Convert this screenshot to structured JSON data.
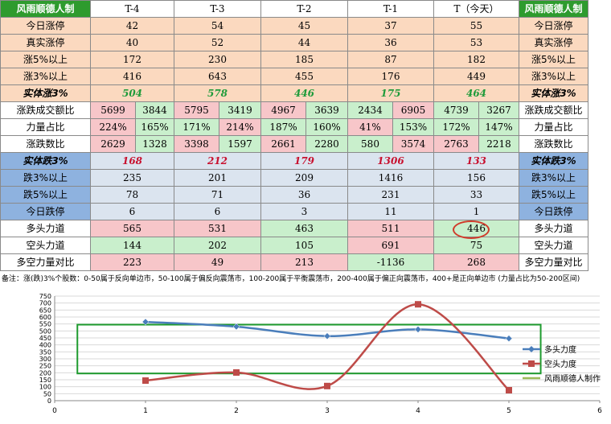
{
  "table": {
    "left_header": "风雨顺德人制",
    "right_header": "风雨顺德人制",
    "columns": [
      "T-4",
      "T-3",
      "T-2",
      "T-1",
      "T（今天）"
    ],
    "rows_top": [
      {
        "label": "今日涨停",
        "values": [
          "42",
          "54",
          "45",
          "37",
          "55"
        ]
      },
      {
        "label": "真实涨停",
        "values": [
          "40",
          "52",
          "44",
          "36",
          "53"
        ]
      },
      {
        "label": "涨5%以上",
        "values": [
          "172",
          "230",
          "185",
          "87",
          "182"
        ]
      },
      {
        "label": "涨3%以上",
        "values": [
          "416",
          "643",
          "455",
          "176",
          "449"
        ]
      }
    ],
    "shiti_zhang": {
      "label": "实体涨3%",
      "values": [
        "504",
        "578",
        "446",
        "175",
        "464"
      ]
    },
    "volume_row": {
      "label": "涨跌成交额比",
      "pairs": [
        [
          "5699",
          "3844"
        ],
        [
          "5795",
          "3419"
        ],
        [
          "4967",
          "3639"
        ],
        [
          "2434",
          "6905"
        ],
        [
          "4739",
          "3267"
        ]
      ]
    },
    "force_row": {
      "label": "力量占比",
      "pairs": [
        [
          "224%",
          "165%"
        ],
        [
          "171%",
          "214%"
        ],
        [
          "187%",
          "160%"
        ],
        [
          "41%",
          "153%"
        ],
        [
          "172%",
          "147%"
        ]
      ]
    },
    "count_row": {
      "label": "涨跌数比",
      "pairs": [
        [
          "2629",
          "1328"
        ],
        [
          "3398",
          "1597"
        ],
        [
          "2661",
          "2280"
        ],
        [
          "580",
          "3574"
        ],
        [
          "2763",
          "2218"
        ]
      ]
    },
    "shiti_die": {
      "label": "实体跌3%",
      "values": [
        "168",
        "212",
        "179",
        "1306",
        "133"
      ]
    },
    "rows_bottom": [
      {
        "label": "跌3%以上",
        "values": [
          "235",
          "201",
          "209",
          "1416",
          "156"
        ]
      },
      {
        "label": "跌5%以上",
        "values": [
          "78",
          "71",
          "36",
          "231",
          "33"
        ]
      },
      {
        "label": "今日跌停",
        "values": [
          "6",
          "6",
          "3",
          "11",
          "1"
        ]
      }
    ],
    "duotou": {
      "label": "多头力道",
      "values": [
        "565",
        "531",
        "463",
        "511",
        "446"
      ]
    },
    "kongtou": {
      "label": "空头力道",
      "values": [
        "144",
        "202",
        "105",
        "691",
        "75"
      ]
    },
    "duikong": {
      "label": "多空力量对比",
      "values": [
        "223",
        "49",
        "213",
        "-1136",
        "268"
      ]
    }
  },
  "note": "备注：涨(跌)3%个股数：0-50属于反向单边市，50-100属于偏反向震荡市，100-200属于平衡震荡市，200-400属于偏正向震荡市，400+是正向单边市 (力量占比为50-200区间)",
  "colors": {
    "green_header": "#2e9b2e",
    "peach": "#fbd9bf",
    "pink": "#f7c6c9",
    "light_green": "#c9efcc",
    "blue_header": "#8eb2df",
    "blue_gray": "#dbe4ef",
    "series_blue": "#4a7ebb",
    "series_red": "#be4b48",
    "series_green": "#9bbb59",
    "box_green": "#1e9b2e"
  },
  "chart_data": {
    "type": "line",
    "xlim": [
      0,
      6
    ],
    "ylim": [
      0,
      750
    ],
    "x_ticks": [
      "0",
      "1",
      "2",
      "3",
      "4",
      "5",
      "6"
    ],
    "y_ticks": [
      "0",
      "50",
      "100",
      "150",
      "200",
      "250",
      "300",
      "350",
      "400",
      "450",
      "500",
      "550",
      "600",
      "650",
      "700",
      "750"
    ],
    "series": [
      {
        "name": "多头力度",
        "x": [
          1,
          2,
          3,
          4,
          5
        ],
        "values": [
          565,
          531,
          463,
          511,
          446
        ],
        "color": "#4a7ebb",
        "marker": "diamond"
      },
      {
        "name": "空头力度",
        "x": [
          1,
          2,
          3,
          4,
          5
        ],
        "values": [
          144,
          202,
          105,
          691,
          75
        ],
        "color": "#be4b48",
        "marker": "square"
      },
      {
        "name": "风雨顺德人制作",
        "x": [],
        "values": [],
        "color": "#9bbb59",
        "marker": "none"
      }
    ],
    "grid": true,
    "legend": "right",
    "annotation_box": {
      "x": [
        0.25,
        5.35
      ],
      "y": [
        195,
        545
      ]
    }
  }
}
